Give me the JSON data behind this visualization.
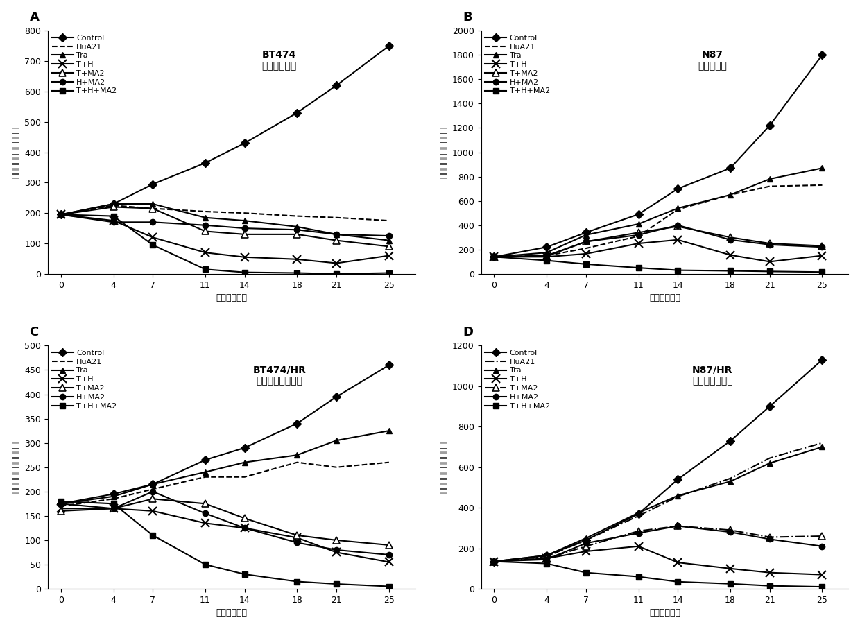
{
  "x": [
    0,
    4,
    7,
    11,
    14,
    18,
    21,
    25
  ],
  "panels": [
    {
      "label": "A",
      "title": "BT474\n乳腺癌移植瘤",
      "ylabel": "肿瘤体积（立方毫米）",
      "xlabel": "药物处理天数",
      "ylim": [
        0,
        800
      ],
      "yticks": [
        0,
        100,
        200,
        300,
        400,
        500,
        600,
        700,
        800
      ],
      "series": [
        {
          "name": "Control",
          "style": "solid",
          "marker": "D",
          "fillstyle": "full",
          "data": [
            195,
            230,
            295,
            365,
            430,
            530,
            620,
            750
          ]
        },
        {
          "name": "HuA21",
          "style": "dashed",
          "marker": "none",
          "fillstyle": "full",
          "data": [
            195,
            225,
            215,
            205,
            200,
            190,
            185,
            175
          ]
        },
        {
          "name": "Tra",
          "style": "solid",
          "marker": "^",
          "fillstyle": "full",
          "data": [
            195,
            230,
            230,
            185,
            175,
            155,
            130,
            110
          ]
        },
        {
          "name": "T+H",
          "style": "solid",
          "marker": "x",
          "fillstyle": "full",
          "data": [
            195,
            175,
            120,
            70,
            55,
            48,
            35,
            60
          ]
        },
        {
          "name": "T+MA2",
          "style": "solid",
          "marker": "^",
          "fillstyle": "none",
          "data": [
            195,
            220,
            215,
            140,
            130,
            130,
            110,
            90
          ]
        },
        {
          "name": "H+MA2",
          "style": "solid",
          "marker": "o",
          "fillstyle": "full",
          "data": [
            195,
            170,
            170,
            160,
            150,
            145,
            130,
            125
          ]
        },
        {
          "name": "T+H+MA2",
          "style": "solid",
          "marker": "s",
          "fillstyle": "full",
          "data": [
            195,
            190,
            95,
            15,
            5,
            3,
            0,
            3
          ]
        }
      ]
    },
    {
      "label": "B",
      "title": "N87\n胃癌移植瘤",
      "ylabel": "肿瘤体积（立方毫米）",
      "xlabel": "药物处理天数",
      "ylim": [
        0,
        2000
      ],
      "yticks": [
        0,
        200,
        400,
        600,
        800,
        1000,
        1200,
        1400,
        1600,
        1800,
        2000
      ],
      "series": [
        {
          "name": "Control",
          "style": "solid",
          "marker": "D",
          "fillstyle": "full",
          "data": [
            140,
            220,
            340,
            490,
            700,
            870,
            1220,
            1800
          ]
        },
        {
          "name": "HuA21",
          "style": "dashed",
          "marker": "none",
          "fillstyle": "full",
          "data": [
            140,
            150,
            210,
            310,
            530,
            650,
            720,
            730
          ]
        },
        {
          "name": "Tra",
          "style": "solid",
          "marker": "^",
          "fillstyle": "full",
          "data": [
            140,
            175,
            320,
            410,
            540,
            650,
            780,
            870
          ]
        },
        {
          "name": "T+H",
          "style": "solid",
          "marker": "x",
          "fillstyle": "full",
          "data": [
            140,
            140,
            165,
            250,
            280,
            155,
            100,
            150
          ]
        },
        {
          "name": "T+MA2",
          "style": "solid",
          "marker": "^",
          "fillstyle": "none",
          "data": [
            140,
            150,
            265,
            340,
            390,
            300,
            250,
            230
          ]
        },
        {
          "name": "H+MA2",
          "style": "solid",
          "marker": "o",
          "fillstyle": "full",
          "data": [
            140,
            145,
            265,
            320,
            400,
            280,
            240,
            220
          ]
        },
        {
          "name": "T+H+MA2",
          "style": "solid",
          "marker": "s",
          "fillstyle": "full",
          "data": [
            140,
            110,
            80,
            50,
            30,
            25,
            20,
            15
          ]
        }
      ]
    },
    {
      "label": "C",
      "title": "BT474/HR\n乳腺癌耐药移植瘤",
      "ylabel": "肿瘤体积（立方毫米）",
      "xlabel": "药物处理天数",
      "ylim": [
        0,
        500
      ],
      "yticks": [
        0,
        50,
        100,
        150,
        200,
        250,
        300,
        350,
        400,
        450,
        500
      ],
      "series": [
        {
          "name": "Control",
          "style": "solid",
          "marker": "D",
          "fillstyle": "full",
          "data": [
            175,
            195,
            215,
            265,
            290,
            340,
            395,
            460
          ]
        },
        {
          "name": "HuA21",
          "style": "dashed",
          "marker": "none",
          "fillstyle": "full",
          "data": [
            170,
            185,
            205,
            230,
            230,
            260,
            250,
            260
          ]
        },
        {
          "name": "Tra",
          "style": "solid",
          "marker": "^",
          "fillstyle": "full",
          "data": [
            175,
            190,
            215,
            240,
            260,
            275,
            305,
            325
          ]
        },
        {
          "name": "T+H",
          "style": "solid",
          "marker": "x",
          "fillstyle": "full",
          "data": [
            165,
            165,
            160,
            135,
            125,
            105,
            75,
            55
          ]
        },
        {
          "name": "T+MA2",
          "style": "solid",
          "marker": "^",
          "fillstyle": "none",
          "data": [
            160,
            165,
            185,
            175,
            145,
            110,
            100,
            90
          ]
        },
        {
          "name": "H+MA2",
          "style": "solid",
          "marker": "o",
          "fillstyle": "full",
          "data": [
            175,
            165,
            200,
            155,
            125,
            95,
            80,
            70
          ]
        },
        {
          "name": "T+H+MA2",
          "style": "solid",
          "marker": "s",
          "fillstyle": "full",
          "data": [
            180,
            175,
            110,
            50,
            30,
            15,
            10,
            5
          ]
        }
      ]
    },
    {
      "label": "D",
      "title": "N87/HR\n胃癌耐药移植瘤",
      "ylabel": "肿瘤体积（立方毫米）",
      "xlabel": "药物处理天数",
      "ylim": [
        0,
        1200
      ],
      "yticks": [
        0,
        200,
        400,
        600,
        800,
        1000,
        1200
      ],
      "series": [
        {
          "name": "Control",
          "style": "solid",
          "marker": "D",
          "fillstyle": "full",
          "data": [
            135,
            165,
            240,
            370,
            540,
            730,
            900,
            1130
          ]
        },
        {
          "name": "HuA21",
          "style": "dashdot",
          "marker": "none",
          "fillstyle": "full",
          "data": [
            135,
            160,
            240,
            360,
            455,
            545,
            645,
            720
          ]
        },
        {
          "name": "Tra",
          "style": "solid",
          "marker": "^",
          "fillstyle": "full",
          "data": [
            135,
            165,
            250,
            375,
            460,
            530,
            620,
            700
          ]
        },
        {
          "name": "T+H",
          "style": "solid",
          "marker": "x",
          "fillstyle": "full",
          "data": [
            135,
            150,
            185,
            210,
            130,
            100,
            80,
            70
          ]
        },
        {
          "name": "T+MA2",
          "style": "dashdot",
          "marker": "^",
          "fillstyle": "none",
          "data": [
            135,
            150,
            210,
            285,
            310,
            290,
            255,
            260
          ]
        },
        {
          "name": "H+MA2",
          "style": "solid",
          "marker": "o",
          "fillstyle": "full",
          "data": [
            135,
            145,
            225,
            275,
            310,
            280,
            245,
            210
          ]
        },
        {
          "name": "T+H+MA2",
          "style": "solid",
          "marker": "s",
          "fillstyle": "full",
          "data": [
            135,
            125,
            80,
            60,
            35,
            25,
            15,
            10
          ]
        }
      ]
    }
  ],
  "line_color": "#000000",
  "background_color": "#ffffff",
  "font_size": 9,
  "title_font_size": 10,
  "label_font_size": 13,
  "legend_fontsize": 8,
  "tick_fontsize": 9
}
